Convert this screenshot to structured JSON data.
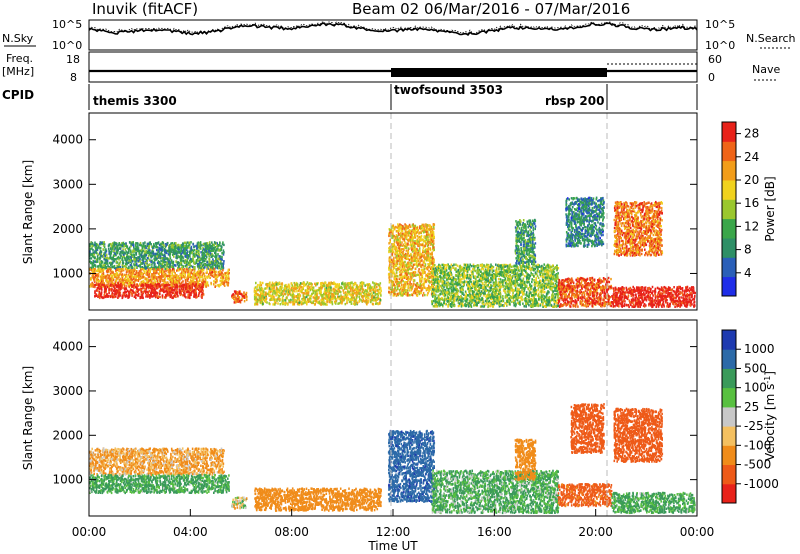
{
  "header": {
    "station": "Inuvik (fitACF)",
    "beam_date": "Beam 02  06/Mar/2016 - 07/Mar/2016"
  },
  "summary_panels": {
    "nsky_label": "N.Sky",
    "nsky_ticks": [
      "10^5",
      "10^0"
    ],
    "nsearch_label": "N.Search",
    "nsearch_ticks": [
      "10^5",
      "10^0"
    ],
    "freq_label_1": "Freq.",
    "freq_label_2": "[MHz]",
    "freq_ticks": [
      "18",
      "8"
    ],
    "nave_label": "Nave",
    "nave_ticks": [
      "60",
      "0"
    ],
    "cpid_label": "CPID"
  },
  "cpid_segments": [
    {
      "name": "themis 3300",
      "start_h": 0
    },
    {
      "name": "twofsound 3503",
      "start_h": 12
    },
    {
      "name": "rbsp 200",
      "start_h": 20.5
    }
  ],
  "colors": {
    "power": [
      "#1f2ee8",
      "#2a5fb8",
      "#2e8f66",
      "#3aa64a",
      "#9ac72e",
      "#f0d21e",
      "#f29d1a",
      "#ef6418",
      "#e8221a"
    ],
    "velocity": [
      "#e8221a",
      "#ee5a18",
      "#f08c1a",
      "#f4c060",
      "#c8c8c8",
      "#58c040",
      "#3a9a5a",
      "#2c6aa8",
      "#1e3ab0"
    ]
  },
  "chart_data": [
    {
      "type": "heatmap",
      "panel": "power",
      "xlabel": "",
      "ylabel": "Slant Range [km]",
      "x_ticks": [
        "00:00",
        "04:00",
        "08:00",
        "12:00",
        "16:00",
        "20:00",
        "00:00"
      ],
      "xlim_hours": [
        0,
        24
      ],
      "y_ticks": [
        1000,
        2000,
        3000,
        4000
      ],
      "ylim_km": [
        180,
        4600
      ],
      "colorbar": {
        "label": "Power [dB]",
        "ticks": [
          4,
          8,
          12,
          16,
          20,
          24,
          28
        ],
        "range": [
          0,
          30
        ]
      },
      "echo_regions": [
        {
          "t0": 0.0,
          "t1": 5.3,
          "r0": 1100,
          "r1": 1700,
          "value": 10
        },
        {
          "t0": 0.0,
          "t1": 5.5,
          "r0": 700,
          "r1": 1100,
          "value": 22
        },
        {
          "t0": 0.2,
          "t1": 4.5,
          "r0": 450,
          "r1": 760,
          "value": 29
        },
        {
          "t0": 5.6,
          "t1": 6.2,
          "r0": 350,
          "r1": 600,
          "value": 25
        },
        {
          "t0": 6.5,
          "t1": 11.5,
          "r0": 300,
          "r1": 800,
          "value": 18
        },
        {
          "t0": 11.8,
          "t1": 13.6,
          "r0": 500,
          "r1": 2100,
          "value": 20
        },
        {
          "t0": 13.5,
          "t1": 18.5,
          "r0": 250,
          "r1": 1200,
          "value": 14
        },
        {
          "t0": 18.5,
          "t1": 20.6,
          "r0": 250,
          "r1": 900,
          "value": 26
        },
        {
          "t0": 20.6,
          "t1": 23.9,
          "r0": 250,
          "r1": 700,
          "value": 30
        },
        {
          "t0": 18.8,
          "t1": 20.3,
          "r0": 1600,
          "r1": 2700,
          "value": 8
        },
        {
          "t0": 20.7,
          "t1": 22.6,
          "r0": 1400,
          "r1": 2600,
          "value": 24
        },
        {
          "t0": 16.8,
          "t1": 17.6,
          "r0": 1200,
          "r1": 2200,
          "value": 10
        }
      ]
    },
    {
      "type": "heatmap",
      "panel": "velocity",
      "xlabel": "Time UT",
      "ylabel": "Slant Range [km]",
      "x_ticks": [
        "00:00",
        "04:00",
        "08:00",
        "12:00",
        "16:00",
        "20:00",
        "00:00"
      ],
      "xlim_hours": [
        0,
        24
      ],
      "y_ticks": [
        1000,
        2000,
        3000,
        4000
      ],
      "ylim_km": [
        180,
        4600
      ],
      "colorbar": {
        "label": "Velocity [m s^-1]",
        "ticks": [
          1000,
          500,
          100,
          25,
          -25,
          -100,
          -500,
          -1000
        ]
      },
      "echo_regions": [
        {
          "t0": 0.0,
          "t1": 5.3,
          "r0": 1100,
          "r1": 1700,
          "value": -120
        },
        {
          "t0": 0.0,
          "t1": 5.5,
          "r0": 700,
          "r1": 1100,
          "value": 150
        },
        {
          "t0": 5.6,
          "t1": 6.2,
          "r0": 350,
          "r1": 600,
          "value": 0
        },
        {
          "t0": 6.5,
          "t1": 11.5,
          "r0": 300,
          "r1": 800,
          "value": -300
        },
        {
          "t0": 11.8,
          "t1": 13.6,
          "r0": 500,
          "r1": 2100,
          "value": 900
        },
        {
          "t0": 13.5,
          "t1": 18.5,
          "r0": 250,
          "r1": 1200,
          "value": 120
        },
        {
          "t0": 18.5,
          "t1": 20.6,
          "r0": 400,
          "r1": 900,
          "value": -600
        },
        {
          "t0": 20.6,
          "t1": 23.9,
          "r0": 250,
          "r1": 700,
          "value": 150
        },
        {
          "t0": 19.0,
          "t1": 20.3,
          "r0": 1600,
          "r1": 2700,
          "value": -700
        },
        {
          "t0": 20.7,
          "t1": 22.6,
          "r0": 1400,
          "r1": 2600,
          "value": -700
        },
        {
          "t0": 16.8,
          "t1": 17.6,
          "r0": 1000,
          "r1": 1900,
          "value": -300
        }
      ]
    }
  ]
}
